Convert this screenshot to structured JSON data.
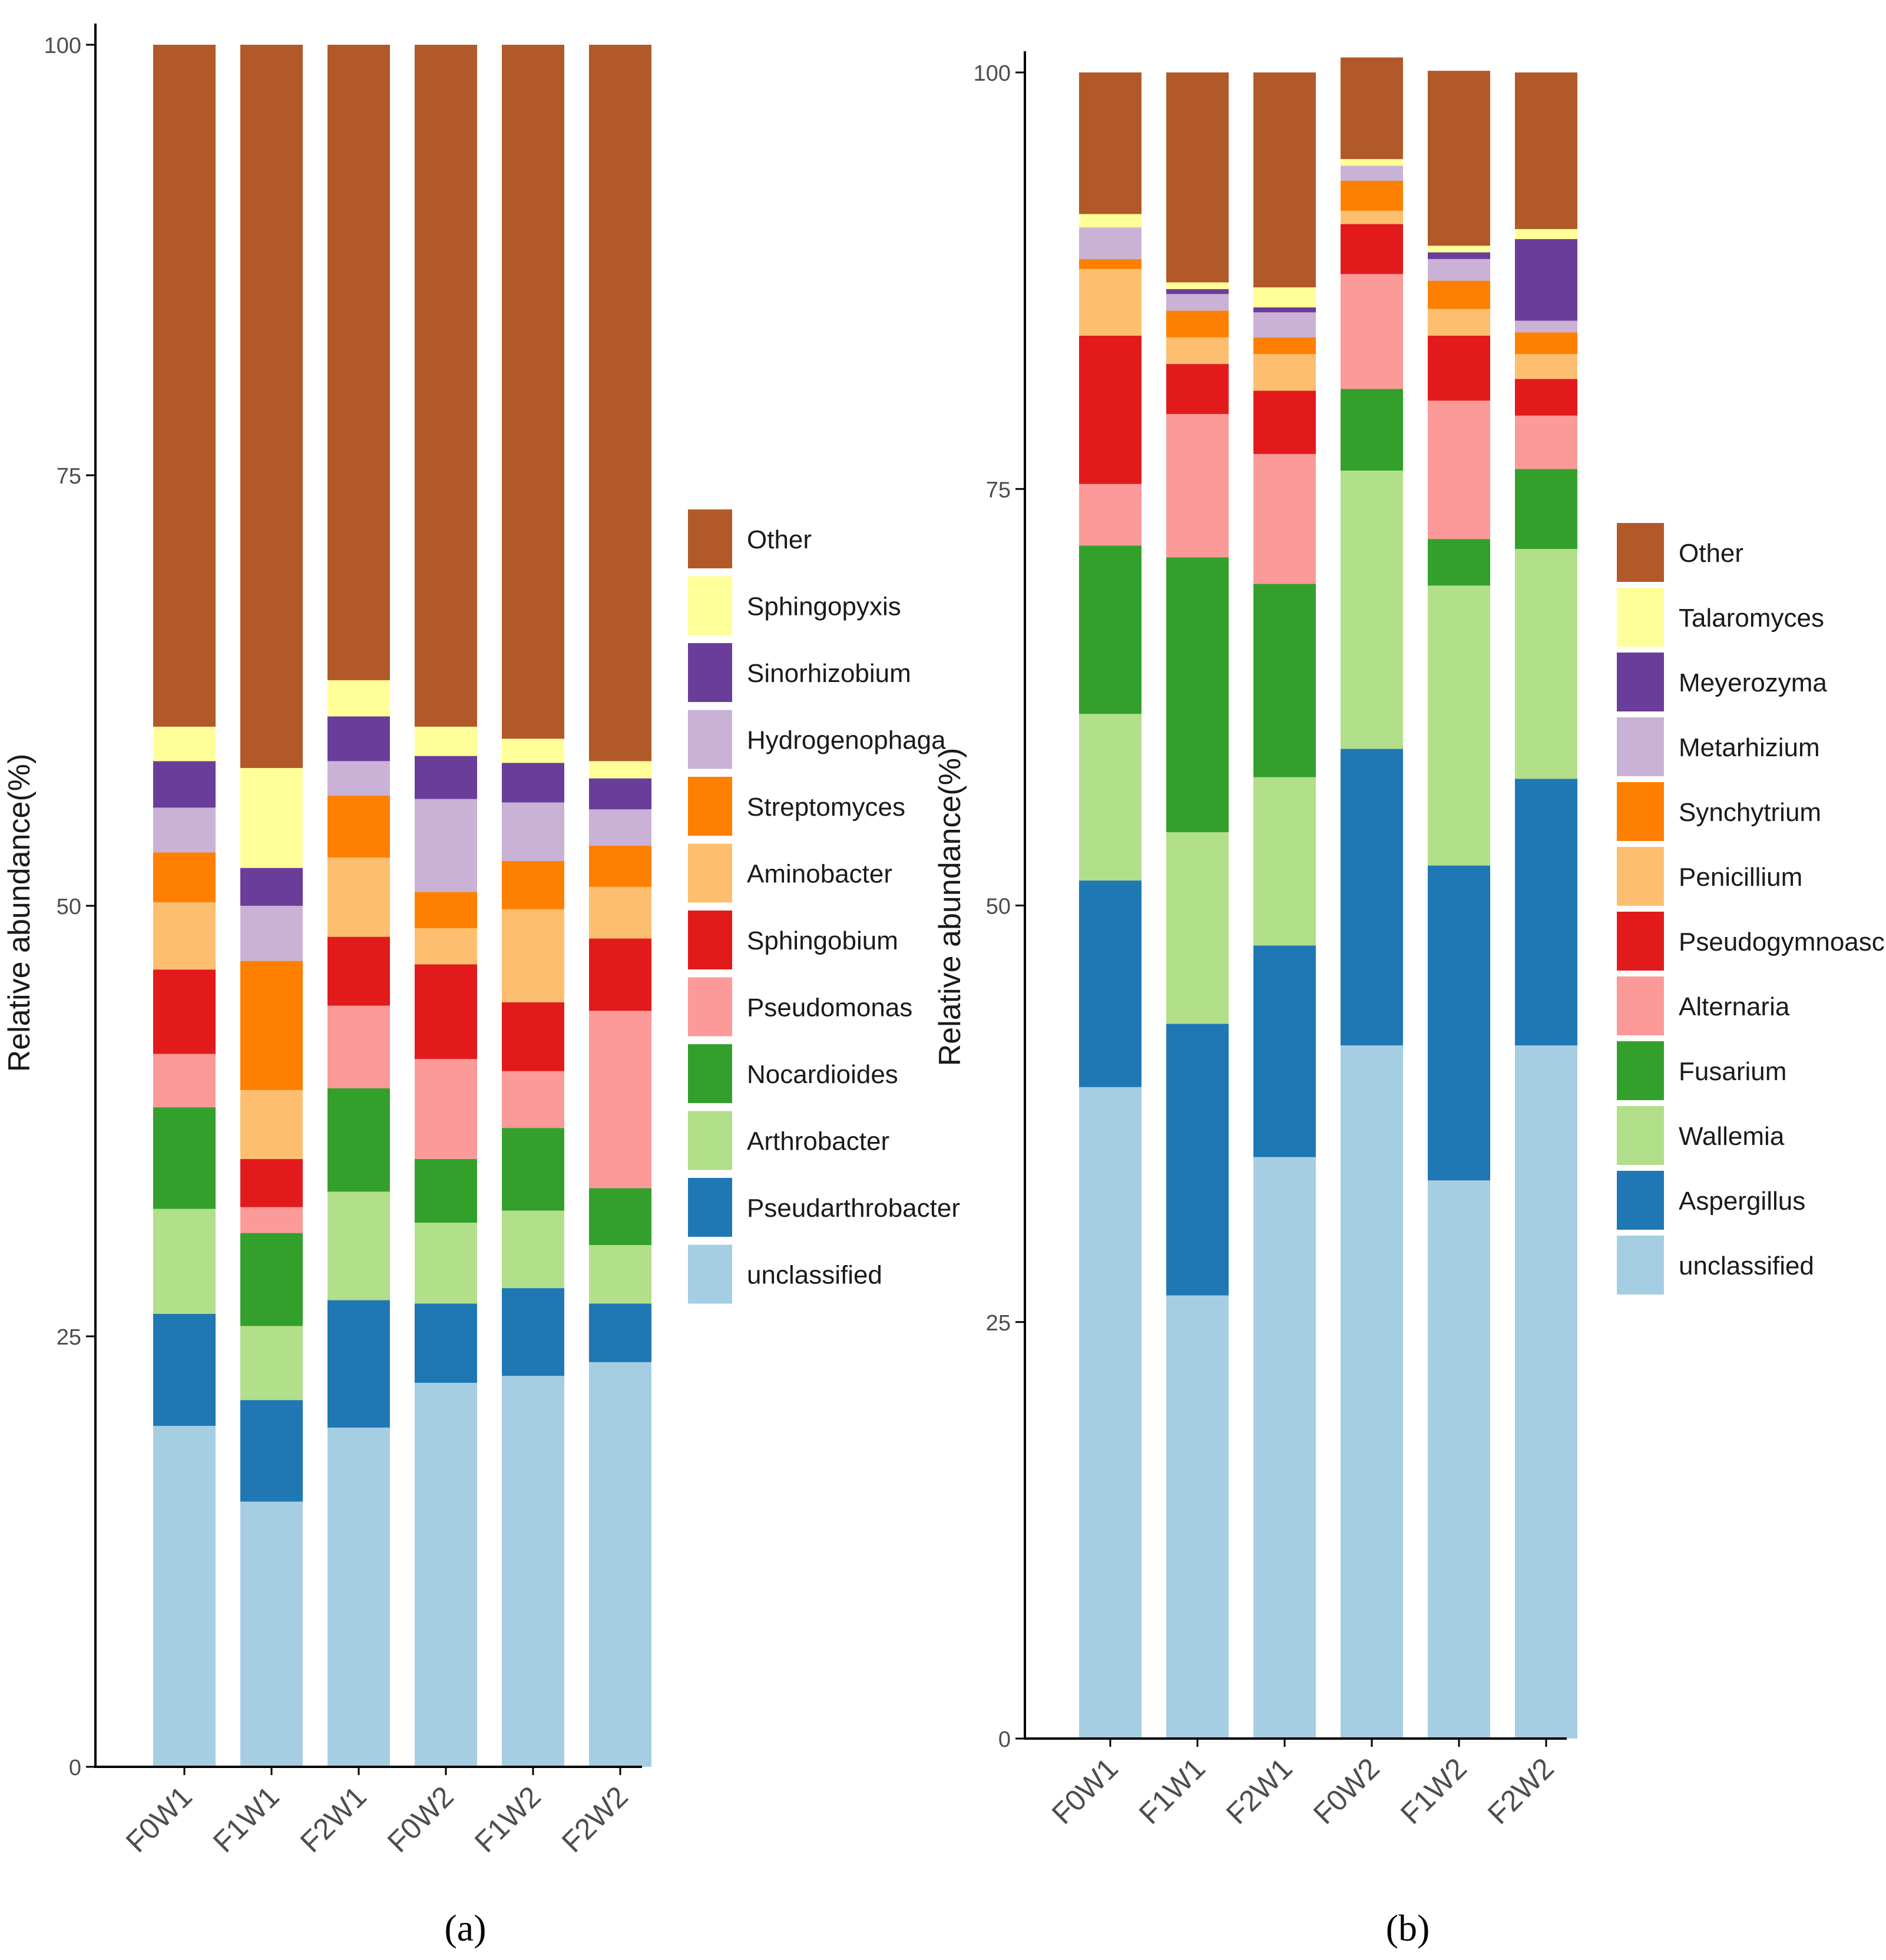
{
  "chart_data": [
    {
      "type": "bar",
      "stacked": true,
      "panel_label": "(a)",
      "ylabel": "Relative abundance(%)",
      "xlabel": "",
      "ylim": [
        0,
        100
      ],
      "yticks": [
        "0",
        "25",
        "50",
        "75",
        "100"
      ],
      "grid": false,
      "legend_position": "right",
      "categories": [
        "F0W1",
        "F1W1",
        "F2W1",
        "F0W2",
        "F1W2",
        "F2W2"
      ],
      "series": [
        {
          "name": "unclassified",
          "color": "#a6cee3",
          "values": [
            19.8,
            15.4,
            19.7,
            22.3,
            22.7,
            23.5
          ]
        },
        {
          "name": "Pseudarthrobacter",
          "color": "#1f78b4",
          "values": [
            6.5,
            5.9,
            7.4,
            4.6,
            5.1,
            3.4
          ]
        },
        {
          "name": "Arthrobacter",
          "color": "#b2df8a",
          "values": [
            6.1,
            4.3,
            6.3,
            4.7,
            4.5,
            3.4
          ]
        },
        {
          "name": "Nocardioides",
          "color": "#33a02c",
          "values": [
            5.9,
            5.4,
            6.0,
            3.7,
            4.8,
            3.3
          ]
        },
        {
          "name": "Pseudomonas",
          "color": "#fb9a99",
          "values": [
            3.1,
            1.5,
            4.8,
            5.8,
            3.3,
            10.3
          ]
        },
        {
          "name": "Sphingobium",
          "color": "#e31a1c",
          "values": [
            4.9,
            2.8,
            4.0,
            5.5,
            4.0,
            4.2
          ]
        },
        {
          "name": "Aminobacter",
          "color": "#fdbf6f",
          "values": [
            3.9,
            4.0,
            4.6,
            2.1,
            5.4,
            3.0
          ]
        },
        {
          "name": "Streptomyces",
          "color": "#ff7f00",
          "values": [
            2.9,
            7.5,
            3.6,
            2.1,
            2.8,
            2.4
          ]
        },
        {
          "name": "Hydrogenophaga",
          "color": "#cab2d6",
          "values": [
            2.6,
            3.2,
            2.0,
            5.4,
            3.4,
            2.1
          ]
        },
        {
          "name": "Sinorhizobium",
          "color": "#6a3d9a",
          "values": [
            2.7,
            2.2,
            2.6,
            2.5,
            2.3,
            1.8
          ]
        },
        {
          "name": "Sphingopyxis",
          "color": "#ffff99",
          "values": [
            2.0,
            5.8,
            2.1,
            1.7,
            1.4,
            1.0
          ]
        },
        {
          "name": "Other",
          "color": "#b15928",
          "values": [
            39.6,
            42.0,
            36.9,
            39.6,
            40.3,
            41.6
          ]
        }
      ],
      "legend_order": [
        "Other",
        "Sphingopyxis",
        "Sinorhizobium",
        "Hydrogenophaga",
        "Streptomyces",
        "Aminobacter",
        "Sphingobium",
        "Pseudomonas",
        "Nocardioides",
        "Arthrobacter",
        "Pseudarthrobacter",
        "unclassified"
      ]
    },
    {
      "type": "bar",
      "stacked": true,
      "panel_label": "(b)",
      "ylabel": "Relative abundance(%)",
      "xlabel": "",
      "ylim": [
        0,
        100
      ],
      "yticks": [
        "0",
        "25",
        "50",
        "75",
        "100"
      ],
      "grid": false,
      "legend_position": "right",
      "categories": [
        "F0W1",
        "F1W1",
        "F2W1",
        "F0W2",
        "F1W2",
        "F2W2"
      ],
      "series": [
        {
          "name": "unclassified",
          "color": "#a6cee3",
          "values": [
            39.1,
            26.6,
            34.9,
            41.6,
            33.5,
            41.6
          ]
        },
        {
          "name": "Aspergillus",
          "color": "#1f78b4",
          "values": [
            12.4,
            16.3,
            12.7,
            17.8,
            18.9,
            16.0
          ]
        },
        {
          "name": "Wallemia",
          "color": "#b2df8a",
          "values": [
            10.0,
            11.5,
            10.1,
            16.7,
            16.8,
            13.8
          ]
        },
        {
          "name": "Fusarium",
          "color": "#33a02c",
          "values": [
            10.1,
            16.5,
            11.6,
            4.9,
            2.8,
            4.8
          ]
        },
        {
          "name": "Alternaria",
          "color": "#fb9a99",
          "values": [
            3.7,
            8.6,
            7.8,
            6.9,
            8.3,
            3.2
          ]
        },
        {
          "name": "Pseudogymnoascus",
          "color": "#e31a1c",
          "values": [
            8.9,
            3.0,
            3.8,
            3.0,
            3.9,
            2.2
          ]
        },
        {
          "name": "Penicillium",
          "color": "#fdbf6f",
          "values": [
            4.0,
            1.6,
            2.2,
            0.8,
            1.6,
            1.5
          ]
        },
        {
          "name": "Synchytrium",
          "color": "#ff7f00",
          "values": [
            0.6,
            1.6,
            1.0,
            1.8,
            1.7,
            1.3
          ]
        },
        {
          "name": "Metarhizium",
          "color": "#cab2d6",
          "values": [
            1.9,
            1.0,
            1.5,
            0.9,
            1.3,
            0.7
          ]
        },
        {
          "name": "Meyerozyma",
          "color": "#6a3d9a",
          "values": [
            0.0,
            0.3,
            0.3,
            0.0,
            0.4,
            4.9
          ]
        },
        {
          "name": "Talaromyces",
          "color": "#ffff99",
          "values": [
            0.8,
            0.4,
            1.2,
            0.4,
            0.4,
            0.6
          ]
        },
        {
          "name": "Other",
          "color": "#b15928",
          "values": [
            8.5,
            12.6,
            12.9,
            6.1,
            10.5,
            9.4
          ]
        }
      ],
      "legend_order": [
        "Other",
        "Talaromyces",
        "Meyerozyma",
        "Metarhizium",
        "Synchytrium",
        "Penicillium",
        "Pseudogymnoascus",
        "Alternaria",
        "Fusarium",
        "Wallemia",
        "Aspergillus",
        "unclassified"
      ]
    }
  ]
}
